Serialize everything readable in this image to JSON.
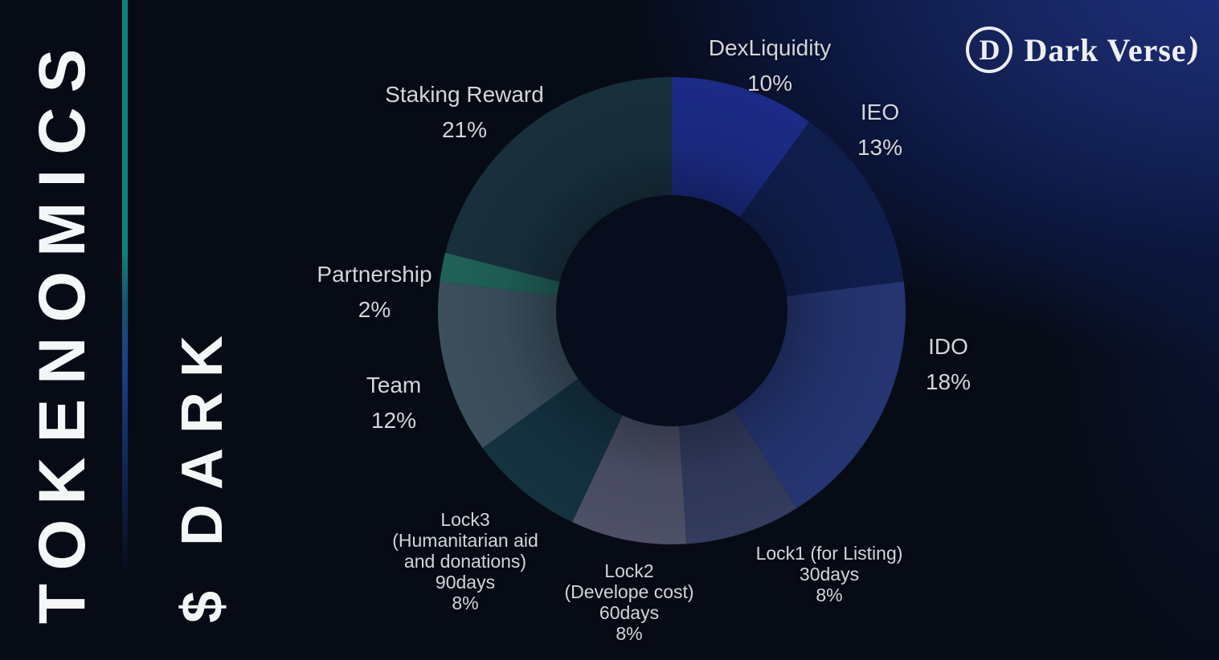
{
  "sidebar": {
    "title": "TOKENOMICS",
    "token": "$ DARK"
  },
  "logo": {
    "monogram": "D",
    "text": "Dark Verse",
    "swash": ")"
  },
  "chart_data": {
    "type": "pie",
    "donut": true,
    "title": "TOKENOMICS — $DARK token distribution",
    "start_angle_deg": 0,
    "direction": "clockwise",
    "total": 100,
    "unit": "%",
    "legend": "none",
    "labels_position": "around",
    "hole_color": "#070d1c",
    "slices": [
      {
        "id": "dexliquidity",
        "label": "DexLiquidity",
        "value": 10,
        "color": "#1c2b86",
        "label_lines": [
          "DexLiquidity",
          "10%"
        ]
      },
      {
        "id": "ieo",
        "label": "IEO",
        "value": 13,
        "color": "#101e4d",
        "label_lines": [
          "IEO",
          "13%"
        ]
      },
      {
        "id": "ido",
        "label": "IDO",
        "value": 18,
        "color": "#253572",
        "label_lines": [
          "IDO",
          "18%"
        ]
      },
      {
        "id": "lock1",
        "label": "Lock1 (for Listing) 30days",
        "value": 8,
        "color": "#333b5e",
        "label_lines": [
          "Lock1 (for Listing)",
          "30days",
          "8%"
        ]
      },
      {
        "id": "lock2",
        "label": "Lock2 (Develope cost) 60days",
        "value": 8,
        "color": "#4e5067",
        "label_lines": [
          "Lock2",
          "(Develope cost)",
          "60days",
          "8%"
        ]
      },
      {
        "id": "lock3",
        "label": "Lock3 (Humanitarian aid and donations) 90days",
        "value": 8,
        "color": "#143240",
        "label_lines": [
          "Lock3",
          "(Humanitarian aid",
          "and donations)",
          "90days",
          "8%"
        ]
      },
      {
        "id": "team",
        "label": "Team",
        "value": 12,
        "color": "#3c4f5d",
        "label_lines": [
          "Team",
          "12%"
        ]
      },
      {
        "id": "partnership",
        "label": "Partnership",
        "value": 2,
        "color": "#206257",
        "label_lines": [
          "Partnership",
          "2%"
        ]
      },
      {
        "id": "staking",
        "label": "Staking Reward",
        "value": 21,
        "color": "#18303c",
        "label_lines": [
          "Staking Reward",
          "21%"
        ]
      }
    ]
  }
}
